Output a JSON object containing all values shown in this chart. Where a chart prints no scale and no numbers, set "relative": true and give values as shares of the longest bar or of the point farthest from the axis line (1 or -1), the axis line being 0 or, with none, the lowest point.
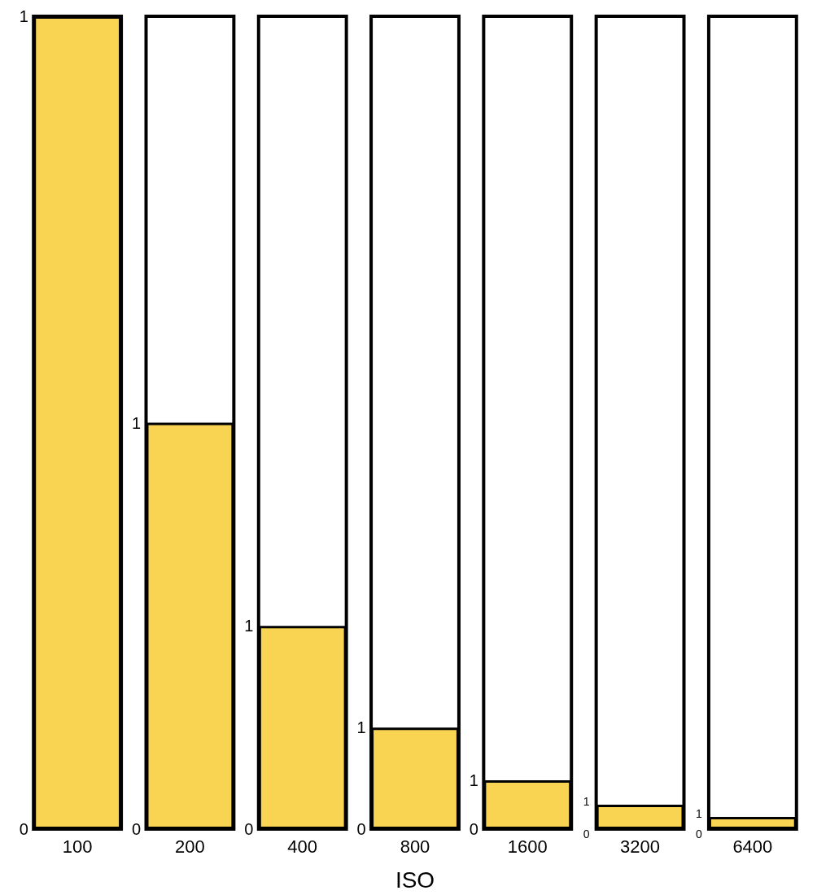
{
  "chart_data": {
    "type": "bar",
    "relative": true,
    "xlabel": "ISO",
    "categories": [
      "100",
      "200",
      "400",
      "800",
      "1600",
      "3200",
      "6400"
    ],
    "values": [
      1,
      0.5,
      0.25,
      0.125,
      0.06,
      0.03,
      0.015
    ],
    "color": "#f9d452",
    "annotations": [
      "1",
      "0",
      "1",
      "0",
      "1",
      "0",
      "1",
      "0",
      "1",
      "0",
      "1",
      "0",
      "1",
      "0"
    ]
  }
}
